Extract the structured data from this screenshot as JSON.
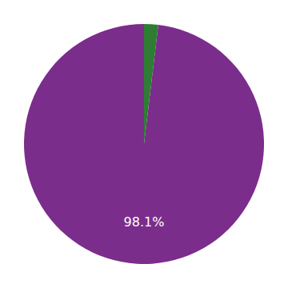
{
  "chart_data": {
    "type": "pie",
    "values": [
      98.1,
      1.9
    ],
    "colors": [
      "#7B2D8B",
      "#2E7D32"
    ],
    "annotation": "98.1%"
  }
}
